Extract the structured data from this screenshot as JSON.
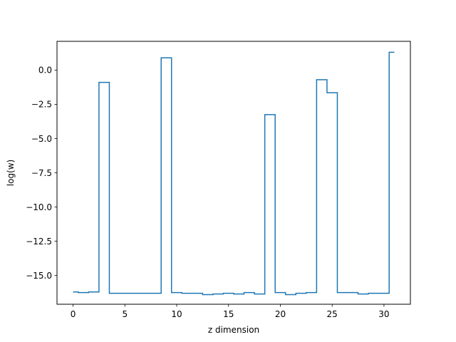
{
  "chart_data": {
    "type": "line",
    "drawstyle": "steps-mid",
    "title": "",
    "xlabel": "z dimension",
    "ylabel": "log(w)",
    "xlim": [
      -1.55,
      32.55
    ],
    "ylim": [
      -17.1,
      2.1
    ],
    "grid": false,
    "x_ticks": [
      0,
      5,
      10,
      15,
      20,
      25,
      30
    ],
    "y_ticks": [
      0.0,
      -2.5,
      -5.0,
      -7.5,
      -10.0,
      -12.5,
      -15.0
    ],
    "x_tick_labels": [
      "0",
      "5",
      "10",
      "15",
      "20",
      "25",
      "30"
    ],
    "y_tick_labels": [
      "0.0",
      "−2.5",
      "−5.0",
      "−7.5",
      "−10.0",
      "−12.5",
      "−15.0"
    ],
    "series": [
      {
        "color": "#1f77b4",
        "x": [
          0,
          1,
          2,
          3,
          4,
          5,
          6,
          7,
          8,
          9,
          10,
          11,
          12,
          13,
          14,
          15,
          16,
          17,
          18,
          19,
          20,
          21,
          22,
          23,
          24,
          25,
          26,
          27,
          28,
          29,
          30,
          31
        ],
        "y": [
          -16.2,
          -16.25,
          -16.2,
          -0.9,
          -16.3,
          -16.3,
          -16.3,
          -16.3,
          -16.3,
          0.9,
          -16.25,
          -16.3,
          -16.3,
          -16.4,
          -16.35,
          -16.3,
          -16.35,
          -16.25,
          -16.35,
          -3.25,
          -16.25,
          -16.4,
          -16.3,
          -16.25,
          -0.7,
          -1.65,
          -16.25,
          -16.25,
          -16.35,
          -16.3,
          -16.3,
          1.3
        ]
      }
    ]
  }
}
